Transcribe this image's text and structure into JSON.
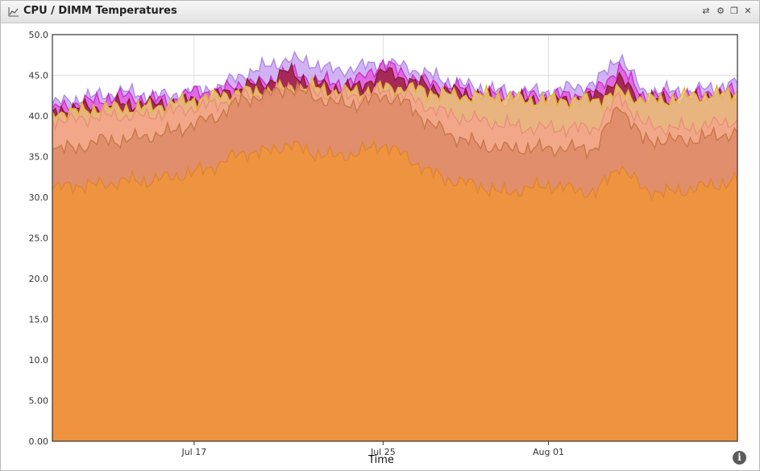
{
  "window": {
    "title": "CPU / DIMM Temperatures",
    "icon": "line-chart-icon",
    "controls": [
      {
        "name": "refresh-icon",
        "glyph": "⇄"
      },
      {
        "name": "gear-icon",
        "glyph": "⚙"
      },
      {
        "name": "restore-icon",
        "glyph": "❐"
      },
      {
        "name": "close-icon",
        "glyph": "✕"
      }
    ],
    "info_glyph": "i"
  },
  "chart_data": {
    "type": "area",
    "stacked": false,
    "title": "CPU / DIMM Temperatures",
    "xlabel": "Time",
    "ylabel": "",
    "ylim": [
      0,
      50
    ],
    "y_ticks": [
      "0.00",
      "5.00",
      "10.0",
      "15.0",
      "20.0",
      "25.0",
      "30.0",
      "35.0",
      "40.0",
      "45.0",
      "50.0"
    ],
    "xlim": [
      "2012-07-11",
      "2012-08-09"
    ],
    "x_ticks": [
      {
        "label": "Jul 17",
        "date": "2012-07-17"
      },
      {
        "label": "Jul 25",
        "date": "2012-07-25"
      },
      {
        "label": "Aug 01",
        "date": "2012-08-01"
      }
    ],
    "grid": true,
    "x": [
      "2012-07-11",
      "2012-07-12",
      "2012-07-13",
      "2012-07-14",
      "2012-07-15",
      "2012-07-16",
      "2012-07-17",
      "2012-07-18",
      "2012-07-19",
      "2012-07-20",
      "2012-07-21",
      "2012-07-22",
      "2012-07-23",
      "2012-07-24",
      "2012-07-25",
      "2012-07-26",
      "2012-07-27",
      "2012-07-28",
      "2012-07-29",
      "2012-07-30",
      "2012-07-31",
      "2012-08-01",
      "2012-08-02",
      "2012-08-03",
      "2012-08-04",
      "2012-08-05",
      "2012-08-06",
      "2012-08-07",
      "2012-08-08",
      "2012-08-09"
    ],
    "series": [
      {
        "color": "#c9a6f2",
        "stroke": "#b088e6",
        "values": [
          41.5,
          42.0,
          42.5,
          43.0,
          42.5,
          42.5,
          43.0,
          43.5,
          45.0,
          46.0,
          47.0,
          46.5,
          45.5,
          46.0,
          46.5,
          46.0,
          45.0,
          44.0,
          43.5,
          43.0,
          43.0,
          43.0,
          43.5,
          44.0,
          47.5,
          43.0,
          43.0,
          43.0,
          43.5,
          44.0
        ]
      },
      {
        "color": "#e45ce0",
        "stroke": "#cc2fcc",
        "values": [
          41.0,
          41.5,
          42.0,
          42.5,
          42.0,
          42.0,
          43.0,
          43.0,
          44.0,
          44.0,
          45.5,
          44.5,
          44.0,
          44.5,
          46.5,
          45.0,
          44.0,
          43.5,
          43.0,
          42.5,
          42.5,
          42.5,
          42.5,
          43.0,
          46.0,
          42.5,
          42.5,
          42.5,
          43.0,
          43.0
        ]
      },
      {
        "color": "#9b2040",
        "stroke": "#8a1a35",
        "values": [
          40.5,
          41.0,
          41.0,
          41.5,
          41.5,
          41.5,
          42.0,
          42.5,
          43.5,
          44.0,
          45.5,
          44.0,
          43.5,
          43.5,
          45.5,
          44.5,
          43.5,
          43.0,
          42.5,
          42.0,
          42.0,
          42.0,
          42.0,
          42.5,
          44.5,
          42.0,
          42.0,
          42.0,
          42.5,
          42.5
        ]
      },
      {
        "color": "#f3cc86",
        "stroke": "#dcb82a",
        "values": [
          40.5,
          40.5,
          41.0,
          41.0,
          41.0,
          41.5,
          42.0,
          42.5,
          43.0,
          43.0,
          43.5,
          43.5,
          43.0,
          43.0,
          43.5,
          43.5,
          43.0,
          42.5,
          42.5,
          42.5,
          42.0,
          42.0,
          42.0,
          42.0,
          43.0,
          42.0,
          42.0,
          42.5,
          42.5,
          43.0
        ]
      },
      {
        "color": "#f3a48a",
        "stroke": "#ea8f7a",
        "values": [
          39.5,
          39.5,
          40.0,
          40.0,
          40.0,
          40.5,
          41.0,
          41.5,
          42.5,
          42.5,
          43.5,
          43.0,
          42.5,
          42.5,
          43.0,
          42.5,
          41.0,
          40.0,
          39.5,
          39.0,
          38.5,
          38.5,
          38.5,
          38.5,
          42.5,
          39.0,
          38.5,
          38.5,
          39.0,
          39.5
        ]
      },
      {
        "color": "#dd8a66",
        "stroke": "#c87848",
        "values": [
          36.0,
          36.0,
          37.0,
          37.0,
          37.5,
          38.0,
          39.0,
          40.0,
          42.0,
          42.5,
          43.5,
          42.5,
          41.5,
          41.5,
          42.5,
          41.5,
          39.0,
          37.5,
          36.5,
          36.0,
          36.0,
          36.0,
          36.0,
          36.0,
          41.5,
          37.0,
          37.0,
          37.0,
          37.5,
          38.0
        ]
      },
      {
        "color": "#ee9440",
        "stroke": "#e0852c",
        "values": [
          31.0,
          31.5,
          31.5,
          32.0,
          32.0,
          32.5,
          33.0,
          34.0,
          35.5,
          35.5,
          36.5,
          35.5,
          35.0,
          35.5,
          36.5,
          35.0,
          33.0,
          32.0,
          31.5,
          30.5,
          31.0,
          31.5,
          31.0,
          30.5,
          34.0,
          31.0,
          30.5,
          31.0,
          31.5,
          32.0
        ]
      }
    ]
  }
}
